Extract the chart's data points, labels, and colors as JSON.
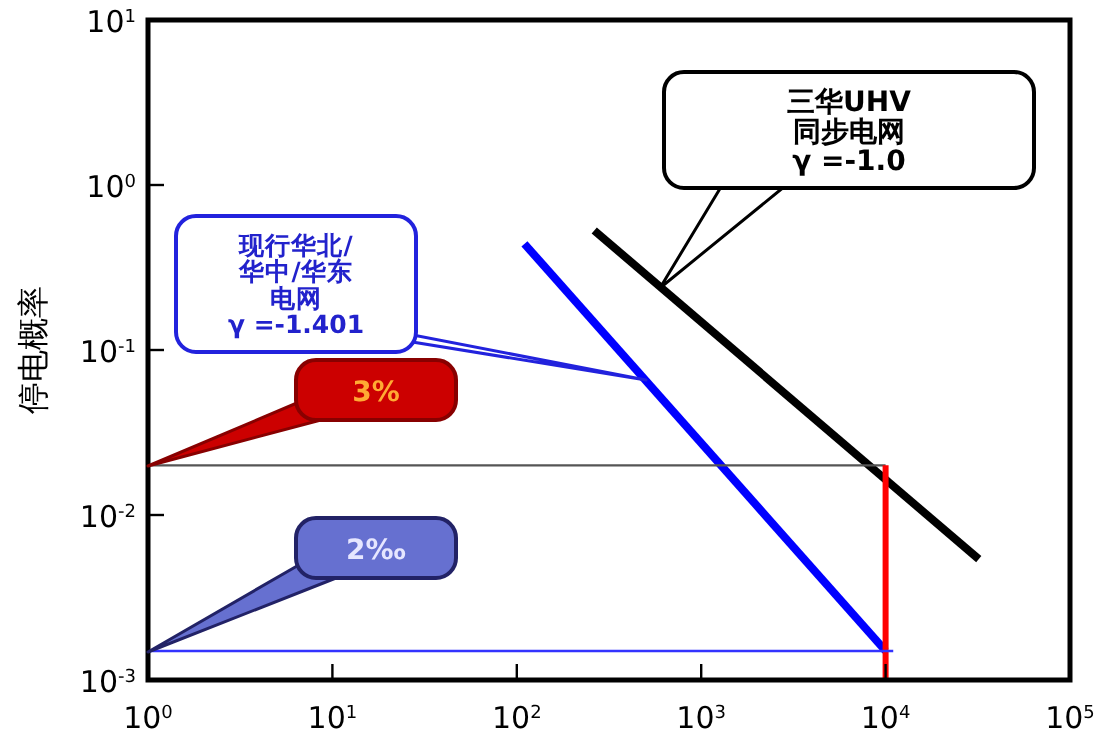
{
  "chart_data": {
    "type": "line",
    "ylabel": "停电概率",
    "log": "xy",
    "grid": false,
    "xlim": [
      1,
      100000
    ],
    "ylim": [
      0.001,
      10
    ],
    "xticks": [
      {
        "value": 1,
        "label": "10$^{0}$"
      },
      {
        "value": 10,
        "label": "10$^{1}$"
      },
      {
        "value": 100,
        "label": "10$^{2}$"
      },
      {
        "value": 1000,
        "label": "10$^{3}$"
      },
      {
        "value": 10000,
        "label": "10$^{4}$"
      },
      {
        "value": 100000,
        "label": "10$^{5}$"
      }
    ],
    "yticks": [
      {
        "value": 0.001,
        "label": "10$^{-3}$"
      },
      {
        "value": 0.01,
        "label": "10$^{-2}$"
      },
      {
        "value": 0.1,
        "label": "10$^{-1}$"
      },
      {
        "value": 1,
        "label": "10$^{0}$"
      },
      {
        "value": 10,
        "label": "10$^{1}$"
      }
    ],
    "series": [
      {
        "color": "#0000ff",
        "x": [
          110,
          10000
        ],
        "values": [
          0.44,
          0.0015
        ]
      },
      {
        "color": "#000000",
        "x": [
          263,
          32000
        ],
        "values": [
          0.53,
          0.0054
        ]
      },
      {
        "color": "#555555",
        "x": [
          1,
          10000
        ],
        "values": [
          0.02,
          0.02
        ]
      },
      {
        "color": "#ff0000",
        "x": [
          10000,
          10000
        ],
        "values": [
          0.001,
          0.02
        ]
      },
      {
        "color": "#3333ff",
        "x": [
          1,
          11000
        ],
        "values": [
          0.0015,
          0.0015
        ]
      }
    ],
    "annotations": [
      "现行华北/华中/华东电网γ =-1.401",
      "三华UHV同步电网γ =-1.0",
      "3%",
      "2‰"
    ]
  }
}
